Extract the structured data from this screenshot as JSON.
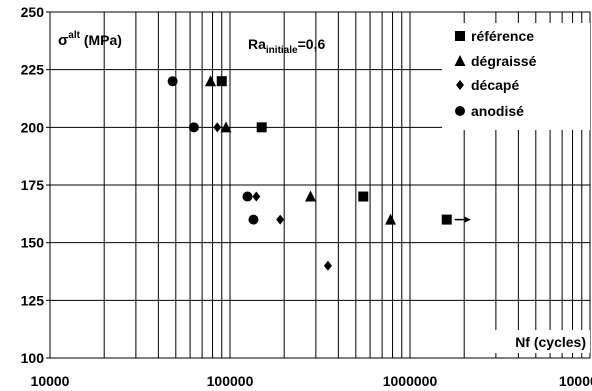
{
  "chart_data": {
    "type": "scatter",
    "x_scale": "log",
    "xlim": [
      10000,
      10000000
    ],
    "ylim": [
      100,
      250
    ],
    "y_ticks": [
      100,
      125,
      150,
      175,
      200,
      225,
      250
    ],
    "x_tick_labels": [
      "10000",
      "100000",
      "1000000",
      "10000000"
    ],
    "grid": true,
    "ylabel_main": "σ",
    "ylabel_sup": "alt",
    "ylabel_unit": " (MPa)",
    "xlabel": "Nf (cycles)",
    "annotation_main": "Ra",
    "annotation_sub": "initiale",
    "annotation_value": "=0,6",
    "legend_position": "top-right",
    "series": [
      {
        "name": "référence",
        "marker": "square",
        "points": [
          [
            90000,
            220
          ],
          [
            150000,
            200
          ],
          [
            550000,
            170
          ],
          [
            1600000,
            160
          ]
        ]
      },
      {
        "name": "dégraissé",
        "marker": "triangle",
        "points": [
          [
            78000,
            220
          ],
          [
            95000,
            200
          ],
          [
            280000,
            170
          ],
          [
            780000,
            160
          ]
        ]
      },
      {
        "name": "décapé",
        "marker": "diamond",
        "points": [
          [
            85000,
            200
          ],
          [
            140000,
            170
          ],
          [
            190000,
            160
          ],
          [
            350000,
            140
          ]
        ]
      },
      {
        "name": "anodisé",
        "marker": "circle",
        "points": [
          [
            48000,
            220
          ],
          [
            63000,
            200
          ],
          [
            125000,
            170
          ],
          [
            135000,
            160
          ]
        ]
      }
    ],
    "runout_arrow_at": [
      1600000,
      160
    ]
  },
  "colors": {
    "marker": "#000000",
    "grid": "#000000",
    "background": "#ffffff"
  }
}
